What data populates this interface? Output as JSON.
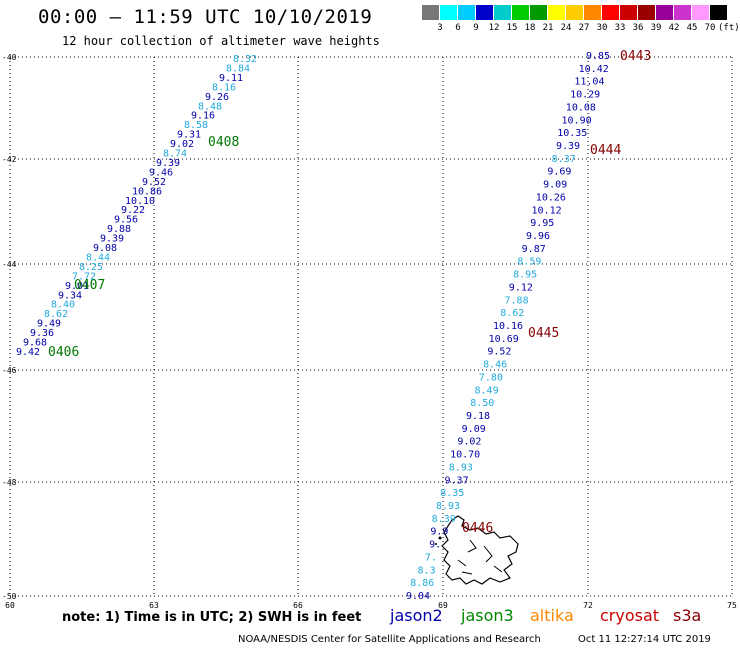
{
  "header": {
    "title": "00:00 – 11:59 UTC 10/10/2019",
    "subtitle": "12 hour collection of altimeter wave heights"
  },
  "colors": {
    "jason2": "#0000aa",
    "jason3": "#008800",
    "altika": "#ff8800",
    "cryosat": "#cc0000",
    "s3a": "#880000",
    "light_blue": "#22aadd",
    "dark_blue": "#0000aa",
    "pass_green": "#007700",
    "pass_maroon": "#880000"
  },
  "legend": {
    "labels": [
      "3",
      "6",
      "9",
      "12",
      "15",
      "18",
      "21",
      "24",
      "27",
      "30",
      "33",
      "36",
      "39",
      "42",
      "45",
      "70",
      "(ft)"
    ],
    "swatches": [
      "#777777",
      "#00ffff",
      "#00ccff",
      "#0000cc",
      "#00cccc",
      "#00cc00",
      "#009900",
      "#ffff00",
      "#ffcc00",
      "#ff8800",
      "#ff0000",
      "#cc0000",
      "#990000",
      "#990099",
      "#cc33cc",
      "#ff99ff",
      "#000000"
    ]
  },
  "map": {
    "lat_labels": [
      "-40",
      "-42",
      "-44",
      "-46",
      "-48",
      "-50"
    ],
    "lon_labels": [
      "60",
      "63",
      "66",
      "69",
      "72",
      "75"
    ],
    "track_left": [
      {
        "t": "8.32",
        "c": "light_blue"
      },
      {
        "t": "8.84",
        "c": "light_blue"
      },
      {
        "t": "9.11",
        "c": "dark_blue"
      },
      {
        "t": "8.16",
        "c": "light_blue"
      },
      {
        "t": "9.26",
        "c": "dark_blue"
      },
      {
        "t": "8.48",
        "c": "light_blue"
      },
      {
        "t": "9.16",
        "c": "dark_blue"
      },
      {
        "t": "8.58",
        "c": "light_blue"
      },
      {
        "t": "9.31",
        "c": "dark_blue"
      },
      {
        "t": "9.02",
        "c": "dark_blue"
      },
      {
        "t": "8.74",
        "c": "light_blue"
      },
      {
        "t": "9.39",
        "c": "dark_blue"
      },
      {
        "t": "9.46",
        "c": "dark_blue"
      },
      {
        "t": "9.52",
        "c": "dark_blue"
      },
      {
        "t": "10.86",
        "c": "dark_blue"
      },
      {
        "t": "10.10",
        "c": "dark_blue"
      },
      {
        "t": "9.22",
        "c": "dark_blue"
      },
      {
        "t": "9.56",
        "c": "dark_blue"
      },
      {
        "t": "9.88",
        "c": "dark_blue"
      },
      {
        "t": "9.39",
        "c": "dark_blue"
      },
      {
        "t": "9.08",
        "c": "dark_blue"
      },
      {
        "t": "8.44",
        "c": "light_blue"
      },
      {
        "t": "8.25",
        "c": "light_blue"
      },
      {
        "t": "7.72",
        "c": "light_blue"
      },
      {
        "t": "9.01",
        "c": "dark_blue"
      },
      {
        "t": "9.34",
        "c": "dark_blue"
      },
      {
        "t": "8.40",
        "c": "light_blue"
      },
      {
        "t": "8.62",
        "c": "light_blue"
      },
      {
        "t": "9.49",
        "c": "dark_blue"
      },
      {
        "t": "9.36",
        "c": "dark_blue"
      },
      {
        "t": "9.68",
        "c": "dark_blue"
      },
      {
        "t": "9.42",
        "c": "dark_blue"
      }
    ],
    "track_right": [
      {
        "t": "9.85",
        "c": "dark_blue"
      },
      {
        "t": "10.42",
        "c": "dark_blue"
      },
      {
        "t": "11.04",
        "c": "dark_blue"
      },
      {
        "t": "10.29",
        "c": "dark_blue"
      },
      {
        "t": "10.08",
        "c": "dark_blue"
      },
      {
        "t": "10.90",
        "c": "dark_blue"
      },
      {
        "t": "10.35",
        "c": "dark_blue"
      },
      {
        "t": "9.39",
        "c": "dark_blue"
      },
      {
        "t": "8.37",
        "c": "light_blue"
      },
      {
        "t": "9.69",
        "c": "dark_blue"
      },
      {
        "t": "9.09",
        "c": "dark_blue"
      },
      {
        "t": "10.26",
        "c": "dark_blue"
      },
      {
        "t": "10.12",
        "c": "dark_blue"
      },
      {
        "t": "9.95",
        "c": "dark_blue"
      },
      {
        "t": "9.96",
        "c": "dark_blue"
      },
      {
        "t": "9.87",
        "c": "dark_blue"
      },
      {
        "t": "8.59",
        "c": "light_blue"
      },
      {
        "t": "8.95",
        "c": "light_blue"
      },
      {
        "t": "9.12",
        "c": "dark_blue"
      },
      {
        "t": "7.88",
        "c": "light_blue"
      },
      {
        "t": "8.62",
        "c": "light_blue"
      },
      {
        "t": "10.16",
        "c": "dark_blue"
      },
      {
        "t": "10.69",
        "c": "dark_blue"
      },
      {
        "t": "9.52",
        "c": "dark_blue"
      },
      {
        "t": "8.46",
        "c": "light_blue"
      },
      {
        "t": "7.80",
        "c": "light_blue"
      },
      {
        "t": "8.49",
        "c": "light_blue"
      },
      {
        "t": "8.50",
        "c": "light_blue"
      },
      {
        "t": "9.18",
        "c": "dark_blue"
      },
      {
        "t": "9.09",
        "c": "dark_blue"
      },
      {
        "t": "9.02",
        "c": "dark_blue"
      },
      {
        "t": "10.70",
        "c": "dark_blue"
      },
      {
        "t": "8.93",
        "c": "light_blue"
      },
      {
        "t": "9.37",
        "c": "dark_blue"
      },
      {
        "t": "8.35",
        "c": "light_blue"
      },
      {
        "t": "8.93",
        "c": "light_blue"
      },
      {
        "t": "8.39",
        "c": "light_blue"
      },
      {
        "t": "9.9",
        "c": "dark_blue"
      },
      {
        "t": "9.",
        "c": "dark_blue"
      },
      {
        "t": "7.",
        "c": "light_blue"
      },
      {
        "t": "8.3",
        "c": "light_blue"
      },
      {
        "t": "8.86",
        "c": "light_blue"
      },
      {
        "t": "9.04",
        "c": "dark_blue"
      }
    ],
    "passes": [
      {
        "t": "0443",
        "c": "pass_maroon"
      },
      {
        "t": "0444",
        "c": "pass_maroon"
      },
      {
        "t": "0445",
        "c": "pass_maroon"
      },
      {
        "t": "0446",
        "c": "pass_maroon"
      },
      {
        "t": "0408",
        "c": "pass_green"
      },
      {
        "t": "0407",
        "c": "pass_green"
      },
      {
        "t": "0406",
        "c": "pass_green"
      }
    ]
  },
  "footer": {
    "note": "note: 1) Time is in UTC; 2) SWH is in feet",
    "satellites": [
      "jason2",
      "jason3",
      "altika",
      "cryosat",
      "s3a"
    ],
    "credit": "NOAA/NESDIS Center for Satellite Applications and Research",
    "timestamp": "Oct 11 12:27:14 UTC 2019"
  }
}
